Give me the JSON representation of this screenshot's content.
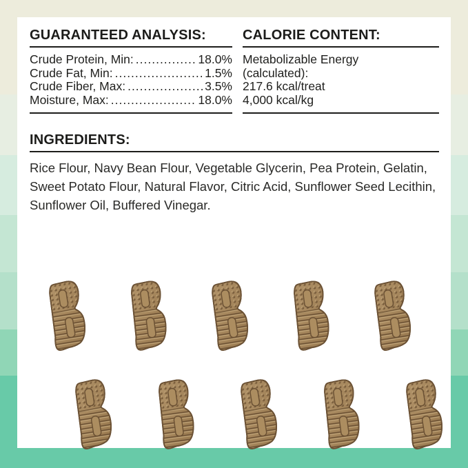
{
  "panel": {
    "guaranteed_analysis": {
      "title": "GUARANTEED ANALYSIS:",
      "rows": [
        {
          "label": "Crude Protein, Min:",
          "value": "18.0%"
        },
        {
          "label": "Crude Fat, Min:",
          "value": "1.5%"
        },
        {
          "label": "Crude Fiber, Max:",
          "value": "3.5%"
        },
        {
          "label": "Moisture, Max:",
          "value": "18.0%"
        }
      ]
    },
    "calorie_content": {
      "title": "CALORIE CONTENT:",
      "lines": [
        "Metabolizable Energy",
        "(calculated):",
        "217.6 kcal/treat",
        "4,000 kcal/kg"
      ]
    },
    "ingredients": {
      "title": "INGREDIENTS:",
      "text": "Rice Flour, Navy Bean Flour, Vegetable Glycerin, Pea Protein, Gelatin, Sweet Potato Flour, Natural Flavor, Citric Acid, Sunflower Seed Lecithin, Sunflower Oil, Buffered Vinegar."
    }
  },
  "treats": {
    "shape": "letter-B-treat",
    "top_row_count": 5,
    "bottom_row_count": 5,
    "base_color": "#a5855a",
    "dark_color": "#6b5134",
    "highlight_color": "#caae81"
  },
  "colors": {
    "text": "#1c1c1a",
    "panel_bg": "#ffffff",
    "background_bands": [
      {
        "color": "#edecdc",
        "to": 137
      },
      {
        "color": "#e7eee2",
        "to": 225
      },
      {
        "color": "#d6ecdf",
        "to": 312
      },
      {
        "color": "#c4e6d3",
        "to": 395
      },
      {
        "color": "#b4e0ca",
        "to": 478
      },
      {
        "color": "#90d6b6",
        "to": 545
      },
      {
        "color": "#68caa8",
        "to": 679
      }
    ]
  }
}
